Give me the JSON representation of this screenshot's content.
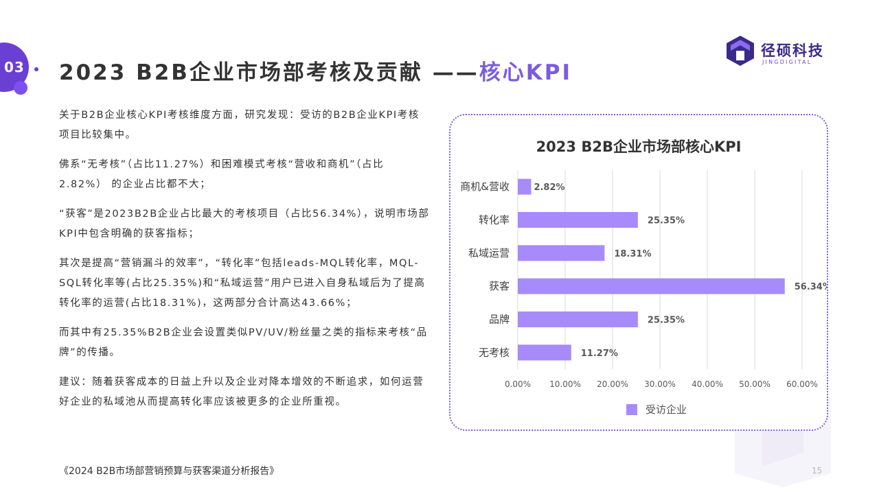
{
  "section": {
    "number": "03"
  },
  "title": {
    "main": "2023 B2B企业市场部考核及贡献 ——",
    "accent": "核心KPI"
  },
  "logo": {
    "name_cn": "径硕科技",
    "name_en": "JINGDIGITAL"
  },
  "paragraphs": [
    "关于B2B企业核心KPI考核维度方面，研究发现：受访的B2B企业KPI考核项目比较集中。",
    "佛系“无考核”（占比11.27%）和困难模式考核“营收和商机”（占比2.82%） 的企业占比都不大；",
    "“获客”是2023B2B企业占比最大的考核项目（占比56.34%），说明市场部KPI中包含明确的获客指标；",
    "其次是提高“营销漏斗的效率”，“转化率”包括leads-MQL转化率，MQL-SQL转化率等(占比25.35%)和“私域运营”用户已进入自身私域后为了提高转化率的运营(占比18.31%)，这两部分合计高达43.66%；",
    "而其中有25.35%B2B企业会设置类似PV/UV/粉丝量之类的指标来考核“品牌”的传播。",
    "建议：随着获客成本的日益上升以及企业对降本增效的不断追求，如何运营好企业的私域池从而提高转化率应该被更多的企业所重视。"
  ],
  "footer": {
    "source": "《2024 B2B市场部营销预算与获客渠道分析报告》",
    "page": "15"
  },
  "chart_data": {
    "type": "bar",
    "orientation": "horizontal",
    "title": "2023 B2B企业市场部核心KPI",
    "categories": [
      "商机&营收",
      "转化率",
      "私域运营",
      "获客",
      "品牌",
      "无考核"
    ],
    "series": [
      {
        "name": "受访企业",
        "values": [
          2.82,
          25.35,
          18.31,
          56.34,
          25.35,
          11.27
        ]
      }
    ],
    "value_labels": [
      "2.82%",
      "25.35%",
      "18.31%",
      "56.34%",
      "25.35%",
      "11.27%"
    ],
    "xlim": [
      0,
      60
    ],
    "xticks": [
      0,
      10,
      20,
      30,
      40,
      50,
      60
    ],
    "xtick_labels": [
      "0.00%",
      "10.00%",
      "20.00%",
      "30.00%",
      "40.00%",
      "50.00%",
      "60.00%"
    ],
    "grid": "vertical",
    "legend_position": "bottom",
    "bar_color": "#a78bfa"
  }
}
